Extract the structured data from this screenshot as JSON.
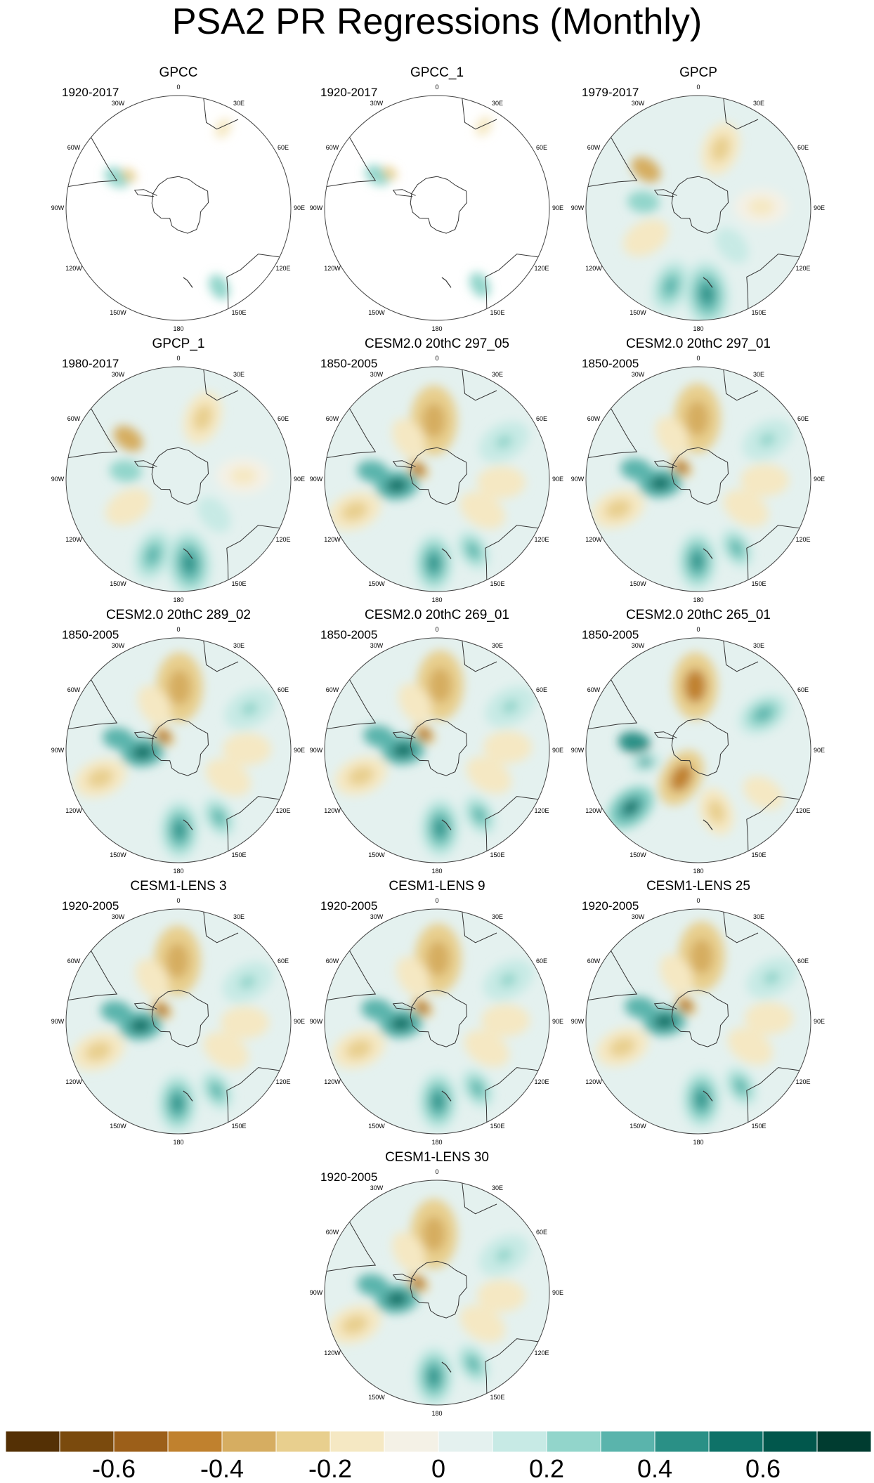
{
  "title": "PSA2 PR Regressions (Monthly)",
  "chart_data": {
    "type": "heatmap",
    "projection": "south polar stereographic",
    "variable": "precipitation regression onto PSA2",
    "longitude_labels": [
      "0",
      "30E",
      "60E",
      "90E",
      "120E",
      "150E",
      "180",
      "150W",
      "120W",
      "90W",
      "60W",
      "30W"
    ],
    "panels": [
      {
        "title": "GPCC",
        "years": "1920-2017",
        "field": "obs_land"
      },
      {
        "title": "GPCC_1",
        "years": "1920-2017",
        "field": "obs_land"
      },
      {
        "title": "GPCP",
        "years": "1979-2017",
        "field": "obs"
      },
      {
        "title": "GPCP_1",
        "years": "1980-2017",
        "field": "obs"
      },
      {
        "title": "CESM2.0 20thC 297_05",
        "years": "1850-2005",
        "field": "model"
      },
      {
        "title": "CESM2.0 20thC 297_01",
        "years": "1850-2005",
        "field": "model"
      },
      {
        "title": "CESM2.0 20thC 289_02",
        "years": "1850-2005",
        "field": "model"
      },
      {
        "title": "CESM2.0 20thC 269_01",
        "years": "1850-2005",
        "field": "model"
      },
      {
        "title": "CESM2.0 20thC 265_01",
        "years": "1850-2005",
        "field": "model_alt"
      },
      {
        "title": "CESM1-LENS 3",
        "years": "1920-2005",
        "field": "model"
      },
      {
        "title": "CESM1-LENS 9",
        "years": "1920-2005",
        "field": "model"
      },
      {
        "title": "CESM1-LENS 25",
        "years": "1920-2005",
        "field": "model"
      },
      {
        "title": "CESM1-LENS 30",
        "years": "1920-2005",
        "field": "model"
      }
    ],
    "colorbar": {
      "levels": [
        -0.7,
        -0.6,
        -0.5,
        -0.4,
        -0.3,
        -0.2,
        -0.1,
        0,
        0.1,
        0.2,
        0.3,
        0.4,
        0.5,
        0.6,
        0.7
      ],
      "colors": [
        "#543005",
        "#7a4a0d",
        "#9c5f19",
        "#c0812e",
        "#d6ad61",
        "#e8cf8e",
        "#f5e8c3",
        "#f4f1e6",
        "#e4f1ef",
        "#c7eae5",
        "#92d5cb",
        "#5ab4ac",
        "#2a9086",
        "#0e7268",
        "#01574c",
        "#003c30"
      ],
      "tick_labels": [
        "-0.6",
        "-0.4",
        "-0.2",
        "0",
        "0.2",
        "0.4",
        "0.6"
      ],
      "tick_values": [
        -0.6,
        -0.4,
        -0.2,
        0,
        0.2,
        0.4,
        0.6
      ]
    }
  }
}
